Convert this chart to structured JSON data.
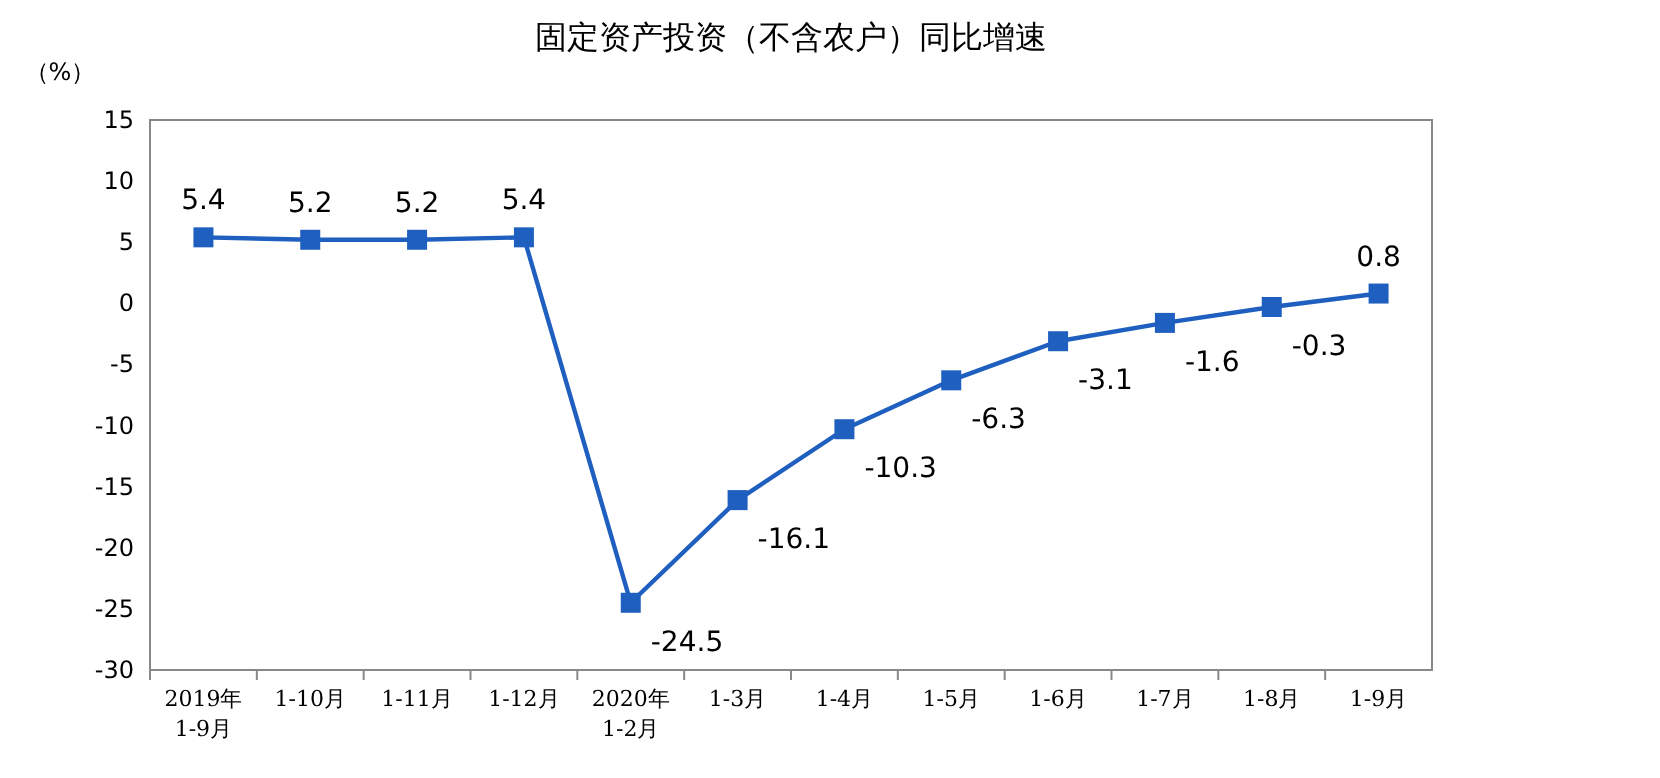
{
  "chart_data": {
    "type": "line",
    "title": "固定资产投资（不含农户）同比增速",
    "ylabel": "（%）",
    "categories": [
      "2019年\n1-9月",
      "1-10月",
      "1-11月",
      "1-12月",
      "2020年\n1-2月",
      "1-3月",
      "1-4月",
      "1-5月",
      "1-6月",
      "1-7月",
      "1-8月",
      "1-9月"
    ],
    "series": [
      {
        "color": "#1f5fbf",
        "values": [
          5.4,
          5.2,
          5.2,
          5.4,
          -24.5,
          -16.1,
          -10.3,
          -6.3,
          -3.1,
          -1.6,
          -0.3,
          0.8
        ]
      }
    ],
    "ylim": [
      -30,
      15
    ],
    "yticks": [
      -30,
      -25,
      -20,
      -15,
      -10,
      -5,
      0,
      5,
      10,
      15
    ],
    "data_labels": true,
    "marker": "square"
  }
}
